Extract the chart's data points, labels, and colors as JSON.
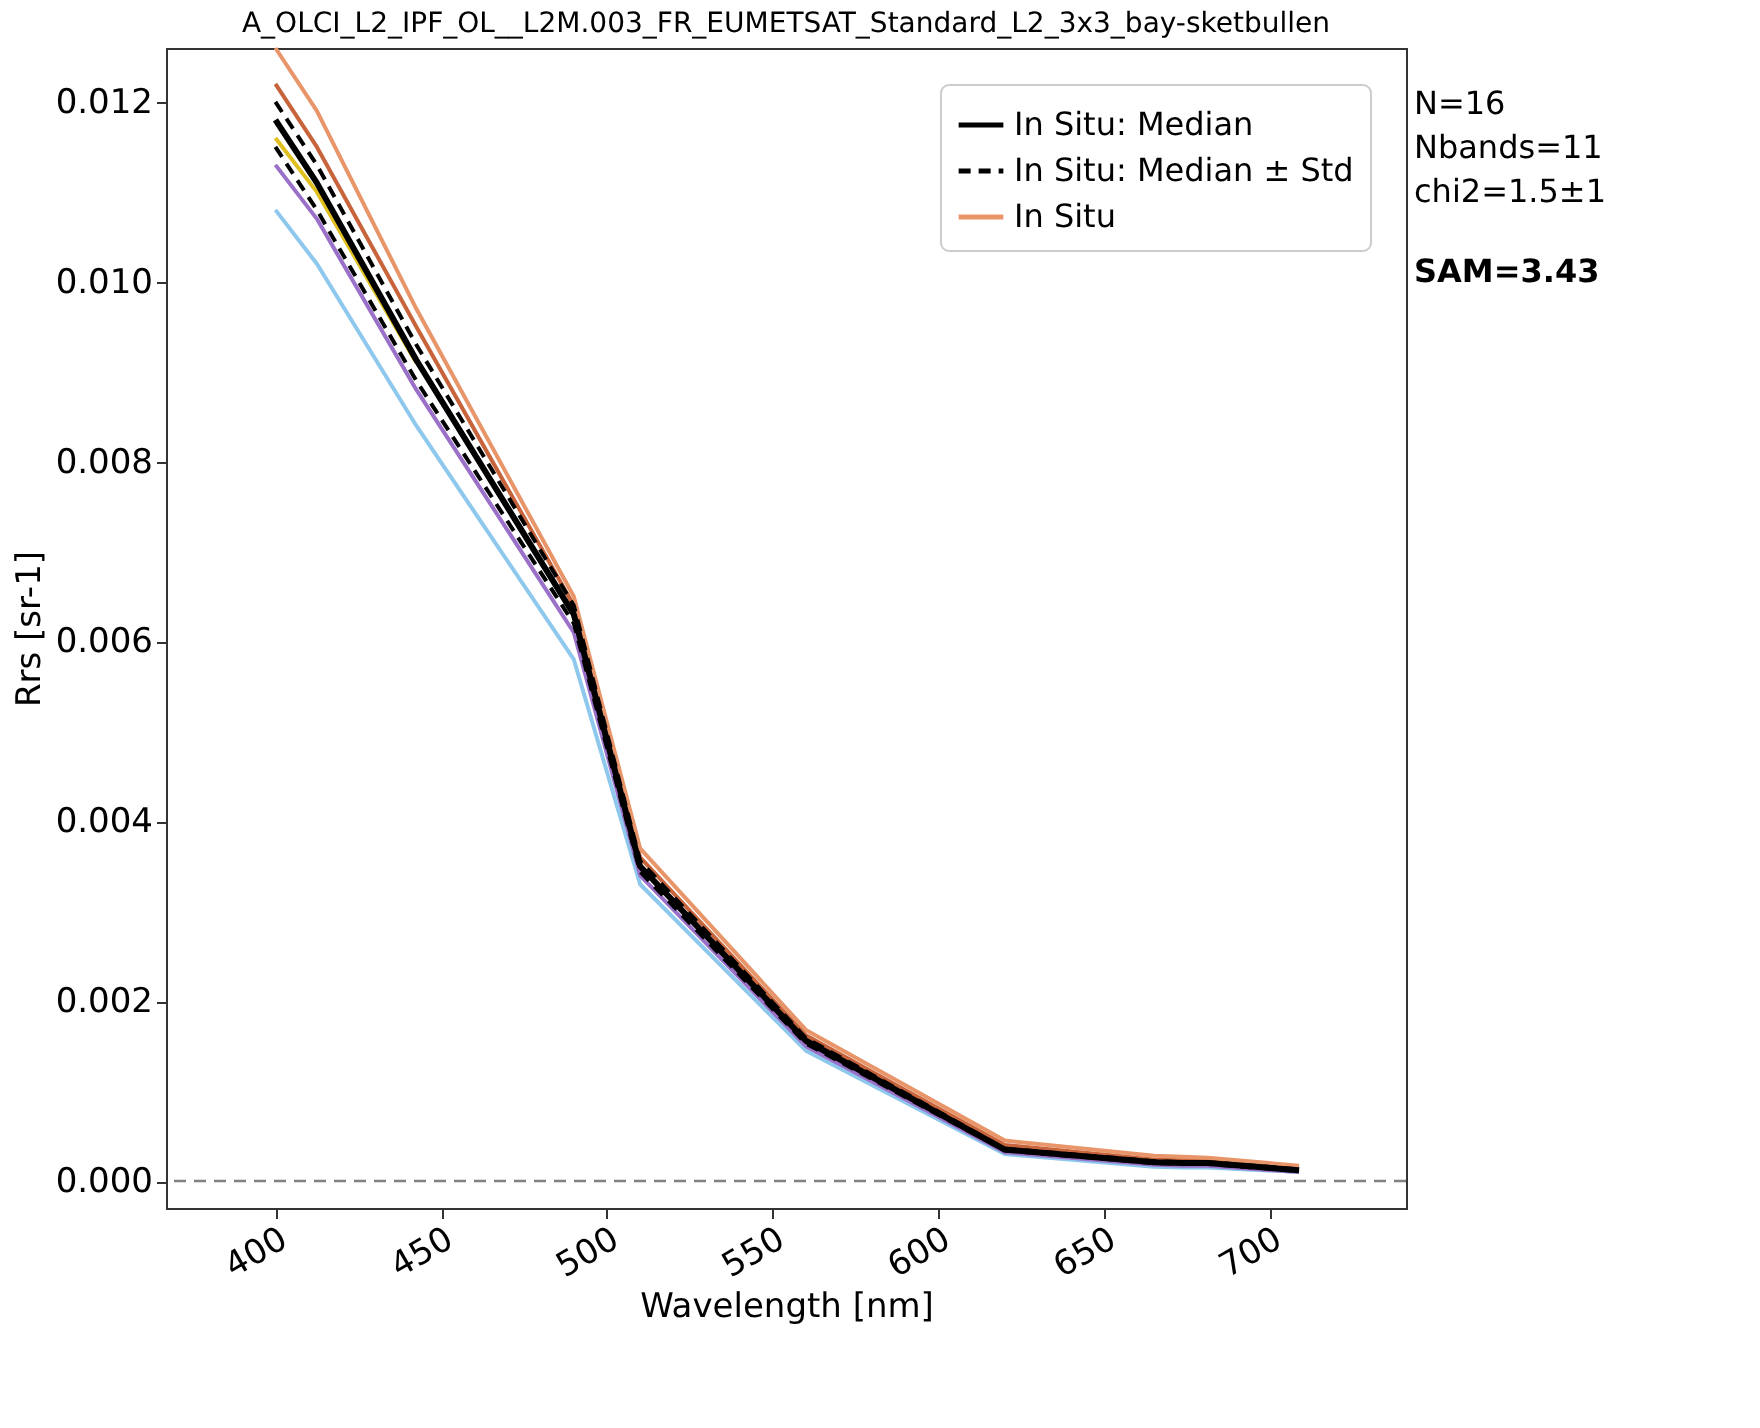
{
  "chart_data": {
    "type": "line",
    "title": "A_OLCI_L2_IPF_OL__L2M.003_FR_EUMETSAT_Standard_L2_3x3_bay-sketbullen",
    "xlabel": "Wavelength [nm]",
    "ylabel": "Rrs [sr-1]",
    "x": [
      400,
      412.5,
      442.5,
      490,
      510,
      560,
      620,
      665,
      673.75,
      681.25,
      708.75
    ],
    "xlim": [
      367,
      741
    ],
    "xticks": [
      400,
      450,
      500,
      550,
      600,
      650,
      700
    ],
    "ylim": [
      -0.0003,
      0.0126
    ],
    "yticks": [
      {
        "value": 0,
        "label": "0.000"
      },
      {
        "value": 0.002,
        "label": "0.002"
      },
      {
        "value": 0.004,
        "label": "0.004"
      },
      {
        "value": 0.006,
        "label": "0.006"
      },
      {
        "value": 0.008,
        "label": "0.008"
      },
      {
        "value": 0.01,
        "label": "0.010"
      },
      {
        "value": 0.012,
        "label": "0.012"
      }
    ],
    "series": [
      {
        "name": "In Situ: Median",
        "color": "#000000",
        "line_style": "solid",
        "values": [
          0.0118,
          0.0111,
          0.00913,
          0.0063,
          0.0035,
          0.00156,
          0.00035,
          0.00021,
          0.0002,
          0.0002,
          0.00012
        ]
      },
      {
        "name": "In Situ: Median ± Std",
        "color": "#000000",
        "line_style": "dashed",
        "values": [
          0.012,
          0.0113,
          0.0093,
          0.0064,
          0.00356,
          0.00159,
          0.00036,
          0.00022,
          0.00021,
          0.00021,
          0.00013
        ]
      },
      {
        "color": "#000000",
        "line_style": "dashed",
        "values": [
          0.0115,
          0.0108,
          0.0089,
          0.0062,
          0.00344,
          0.00153,
          0.00034,
          0.0002,
          0.00019,
          0.00019,
          0.00011
        ]
      },
      {
        "name": "In Situ",
        "color": "#e8956a",
        "line_style": "solid",
        "values": [
          0.0126,
          0.0119,
          0.0097,
          0.0065,
          0.0037,
          0.00168,
          0.00045,
          0.00028,
          0.00027,
          0.00026,
          0.00017
        ]
      },
      {
        "color": "#c8643c",
        "line_style": "solid",
        "values": [
          0.0122,
          0.0115,
          0.0095,
          0.0064,
          0.0036,
          0.00162,
          0.0004,
          0.00024,
          0.00023,
          0.00023,
          0.00014
        ]
      },
      {
        "color": "#e0c020",
        "line_style": "solid",
        "values": [
          0.0116,
          0.011,
          0.0091,
          null,
          null,
          null,
          null,
          null,
          null,
          null,
          null
        ]
      },
      {
        "color": "#9a70c8",
        "line_style": "solid",
        "values": [
          0.0113,
          0.0107,
          0.0088,
          0.0061,
          0.0034,
          0.0015,
          0.00032,
          0.00018,
          0.00017,
          0.00017,
          0.0001
        ]
      },
      {
        "color": "#8ec8ec",
        "line_style": "solid",
        "values": [
          0.0108,
          0.0102,
          0.0084,
          0.0058,
          0.0033,
          0.00145,
          0.0003,
          0.00016,
          0.00015,
          0.00015,
          0.0001
        ]
      }
    ],
    "ref_lines": [
      {
        "axis": "y",
        "value": 0,
        "color": "#808080",
        "line_style": "dashed"
      }
    ],
    "legend": "top right",
    "grid": false,
    "annotations": [
      "N=16",
      "Nbands=11",
      "chi2=1.5±1",
      "SAM=3.43"
    ]
  }
}
